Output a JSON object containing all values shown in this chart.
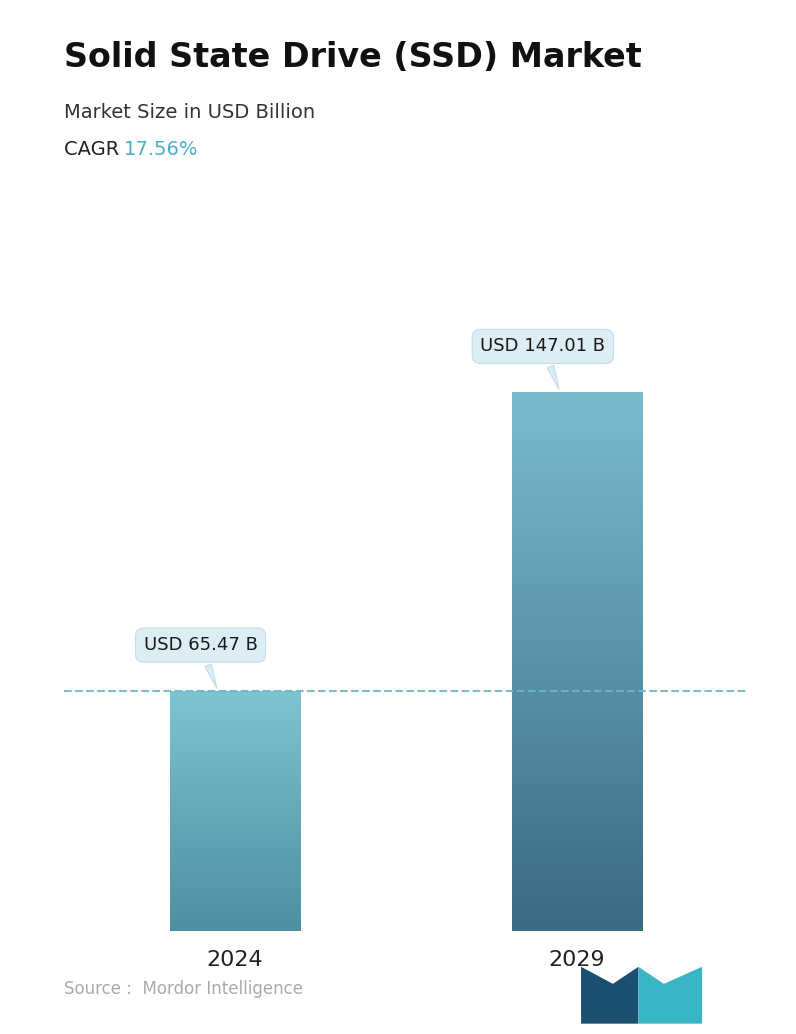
{
  "title": "Solid State Drive (SSD) Market",
  "subtitle": "Market Size in USD Billion",
  "cagr_label": "CAGR ",
  "cagr_value": "17.56%",
  "cagr_color": "#4aaec9",
  "categories": [
    "2024",
    "2029"
  ],
  "values": [
    65.47,
    147.01
  ],
  "bar_labels": [
    "USD 65.47 B",
    "USD 147.01 B"
  ],
  "bar1_color_top": "#7dc4d0",
  "bar1_color_bottom": "#4e8fa0",
  "bar2_color_top": "#7bbccc",
  "bar2_color_bottom": "#3a6a80",
  "dashed_line_color": "#6ab8c8",
  "dashed_line_value": 65.47,
  "source_text": "Source :  Mordor Intelligence",
  "source_color": "#aaaaaa",
  "background_color": "#ffffff",
  "title_fontsize": 24,
  "subtitle_fontsize": 14,
  "cagr_fontsize": 14,
  "xlabel_fontsize": 16,
  "bar_label_fontsize": 13,
  "source_fontsize": 12,
  "ylim": [
    0,
    175
  ],
  "bar_width": 0.38,
  "x_positions": [
    0,
    1
  ]
}
